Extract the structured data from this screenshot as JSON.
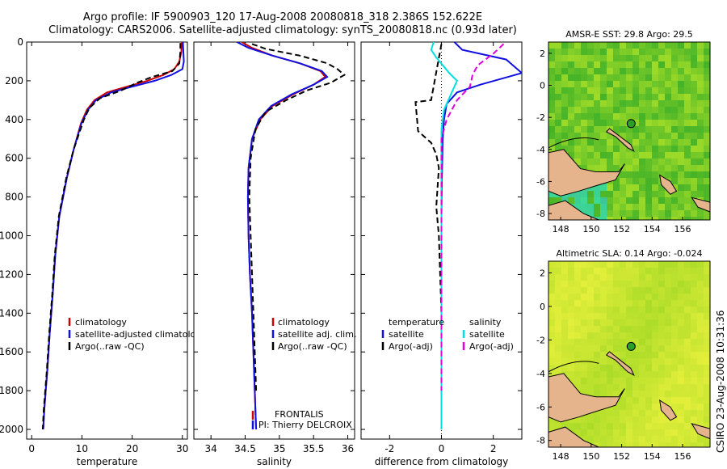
{
  "figure": {
    "title_line1": "Argo profile: IF 5900903_120 17-Aug-2008 20080818_318 2.386S 152.622E",
    "title_line2": "Climatology: CARS2006. Satellite-adjusted climatology: synTS_20080818.nc (0.93d later)",
    "side_label": "CSIRO 23-Aug-2008 10:31:36",
    "pi_line1": "FRONTALIS",
    "pi_line2": "PI: Thierry DELCROIX"
  },
  "colors": {
    "climatology": "#cc0000",
    "satellite": "#1010e0",
    "argo": "#000000",
    "salinity_satellite": "#00e0e0",
    "salinity_argo": "#e000e0",
    "land": "#e6b48c"
  },
  "chart_data": [
    {
      "type": "line",
      "xlabel": "temperature",
      "xlim": [
        -1,
        31
      ],
      "xticks": [
        0,
        10,
        20,
        30
      ],
      "ylim": [
        0,
        2050
      ],
      "yticks": [
        0,
        200,
        400,
        600,
        800,
        1000,
        1200,
        1400,
        1600,
        1800,
        2000
      ],
      "y_reversed": true,
      "legend": {
        "entries": [
          "climatology",
          "satellite-adjusted climatology",
          "Argo(..raw -QC)"
        ]
      },
      "series": [
        {
          "name": "climatology",
          "color": "#cc0000",
          "dash": "solid",
          "x": [
            29.9,
            29.8,
            29.4,
            28.4,
            26.2,
            23.0,
            19.0,
            15.0,
            12.5,
            11.0,
            9.8,
            8.4,
            7.0,
            5.5,
            4.7,
            4.2,
            3.6,
            3.1,
            2.8,
            2.5,
            2.3
          ],
          "y": [
            0,
            50,
            100,
            140,
            170,
            200,
            230,
            260,
            300,
            350,
            420,
            550,
            700,
            900,
            1100,
            1300,
            1500,
            1700,
            1800,
            1900,
            2000
          ]
        },
        {
          "name": "satellite-adjusted climatology",
          "color": "#1010e0",
          "dash": "solid",
          "x": [
            30.1,
            30.2,
            30.3,
            30.0,
            27.8,
            24.5,
            20.0,
            15.8,
            12.8,
            11.2,
            9.9,
            8.4,
            7.0,
            5.5,
            4.7,
            4.2,
            3.6,
            3.1,
            2.8,
            2.5,
            2.3
          ],
          "y": [
            0,
            50,
            100,
            140,
            170,
            200,
            230,
            260,
            300,
            350,
            420,
            550,
            700,
            900,
            1100,
            1300,
            1500,
            1700,
            1800,
            1900,
            2000
          ]
        },
        {
          "name": "Argo(..raw -QC)",
          "color": "#000000",
          "dash": "dash",
          "x": [
            29.6,
            29.6,
            29.4,
            28.0,
            24.0,
            21.0,
            17.8,
            13.6,
            11.5,
            10.4,
            9.6,
            8.3,
            6.9,
            5.4,
            4.6,
            4.1,
            3.5,
            3.0,
            2.7,
            2.4,
            2.2
          ],
          "y": [
            5,
            50,
            110,
            150,
            180,
            210,
            250,
            290,
            340,
            400,
            460,
            560,
            700,
            900,
            1100,
            1300,
            1500,
            1700,
            1800,
            1900,
            2000
          ]
        }
      ]
    },
    {
      "type": "line",
      "xlabel": "salinity",
      "xlim": [
        33.75,
        36.1
      ],
      "xticks": [
        34,
        34.5,
        35,
        35.5,
        36
      ],
      "ylim": [
        0,
        2050
      ],
      "y_reversed": true,
      "legend": {
        "entries": [
          "climatology",
          "satellite adj. clim.",
          "Argo(..raw -QC)"
        ]
      },
      "series": [
        {
          "name": "climatology",
          "color": "#cc0000",
          "dash": "solid",
          "x": [
            34.45,
            34.6,
            34.9,
            35.3,
            35.6,
            35.67,
            35.5,
            35.2,
            34.9,
            34.72,
            34.6,
            34.55,
            34.54,
            34.55,
            34.57,
            34.6,
            34.62,
            34.64,
            34.65,
            34.66
          ],
          "y": [
            0,
            30,
            70,
            110,
            150,
            180,
            220,
            270,
            330,
            400,
            500,
            650,
            800,
            1000,
            1200,
            1400,
            1600,
            1800,
            1900,
            2000
          ]
        },
        {
          "name": "satellite adj. clim.",
          "color": "#1010e0",
          "dash": "solid",
          "x": [
            34.38,
            34.55,
            34.9,
            35.3,
            35.62,
            35.7,
            35.5,
            35.18,
            34.88,
            34.7,
            34.6,
            34.55,
            34.54,
            34.55,
            34.57,
            34.6,
            34.62,
            34.64,
            34.65,
            34.66
          ],
          "y": [
            0,
            30,
            70,
            110,
            150,
            180,
            220,
            270,
            330,
            400,
            500,
            650,
            800,
            1000,
            1200,
            1400,
            1600,
            1800,
            1900,
            2000
          ]
        },
        {
          "name": "Argo(..raw -QC)",
          "color": "#000000",
          "dash": "dash",
          "x": [
            34.6,
            34.8,
            35.3,
            35.7,
            35.85,
            35.95,
            35.75,
            35.4,
            35.1,
            34.8,
            34.65,
            34.58,
            34.56,
            34.58,
            34.6,
            34.62,
            34.64,
            34.66
          ],
          "y": [
            10,
            35,
            70,
            110,
            140,
            170,
            210,
            250,
            300,
            360,
            450,
            600,
            800,
            1000,
            1200,
            1400,
            1600,
            1800
          ]
        }
      ]
    },
    {
      "type": "line",
      "xlabel": "difference from climatology",
      "xlim": [
        -3.1,
        3.1
      ],
      "xticks": [
        -2,
        0,
        2
      ],
      "ylim": [
        0,
        2050
      ],
      "y_reversed": true,
      "legend": {
        "left_title": "temperature",
        "right_title": "salinity",
        "left_entries": [
          "satellite",
          "Argo(-adj)"
        ],
        "right_entries": [
          "satellite",
          "Argo(-adj)"
        ]
      },
      "series": [
        {
          "name": "temperature satellite",
          "color": "#1010e0",
          "dash": "solid",
          "x": [
            0.5,
            0.8,
            2.5,
            3.1,
            1.5,
            0.6,
            0.2,
            0.1,
            0.05,
            0.02,
            0.0,
            0.0,
            0.0,
            0.0,
            0.0
          ],
          "y": [
            0,
            40,
            90,
            160,
            220,
            260,
            320,
            400,
            500,
            700,
            900,
            1200,
            1500,
            1800,
            2000
          ]
        },
        {
          "name": "temperature Argo(-adj)",
          "color": "#000000",
          "dash": "dash",
          "x": [
            0.0,
            -0.4,
            -1.0,
            -0.9,
            -0.4,
            -0.2,
            -0.1,
            -0.15,
            -0.2,
            -0.1,
            -0.05,
            0.0,
            0.0,
            0.0,
            0.0
          ],
          "y": [
            10,
            300,
            310,
            460,
            520,
            580,
            650,
            750,
            850,
            1000,
            1200,
            1400,
            1600,
            1800,
            2000
          ]
        },
        {
          "name": "salinity satellite",
          "color": "#00e0e0",
          "dash": "solid",
          "x": [
            -0.3,
            -0.4,
            -0.2,
            0.3,
            0.6,
            0.4,
            0.1,
            0.0,
            0.0,
            0.0,
            0.0,
            0.0,
            0.0
          ],
          "y": [
            0,
            40,
            80,
            160,
            200,
            260,
            350,
            450,
            600,
            900,
            1300,
            1700,
            2000
          ]
        },
        {
          "name": "salinity Argo(-adj)",
          "color": "#e000e0",
          "dash": "dash",
          "x": [
            2.4,
            2.0,
            1.4,
            1.2,
            1.1,
            0.6,
            0.2,
            0.0,
            0.0,
            0.0,
            0.0,
            0.0
          ],
          "y": [
            10,
            60,
            120,
            170,
            230,
            300,
            400,
            500,
            800,
            1100,
            1500,
            1800
          ]
        }
      ]
    }
  ],
  "maps": [
    {
      "title": "AMSR-E SST: 29.8 Argo: 29.5",
      "xlim": [
        147.2,
        157.8
      ],
      "ylim": [
        -8.4,
        2.7
      ],
      "xticks": [
        148,
        150,
        152,
        154,
        156
      ],
      "yticks": [
        2,
        0,
        -2,
        -4,
        -6,
        -8
      ],
      "argo_lon": 152.622,
      "argo_lat": -2.386
    },
    {
      "title": "Altimetric SLA: 0.14 Argo: -0.024",
      "xlim": [
        147.2,
        157.8
      ],
      "ylim": [
        -8.4,
        2.7
      ],
      "xticks": [
        148,
        150,
        152,
        154,
        156
      ],
      "yticks": [
        2,
        0,
        -2,
        -4,
        -6,
        -8
      ],
      "argo_lon": 152.622,
      "argo_lat": -2.386
    }
  ]
}
